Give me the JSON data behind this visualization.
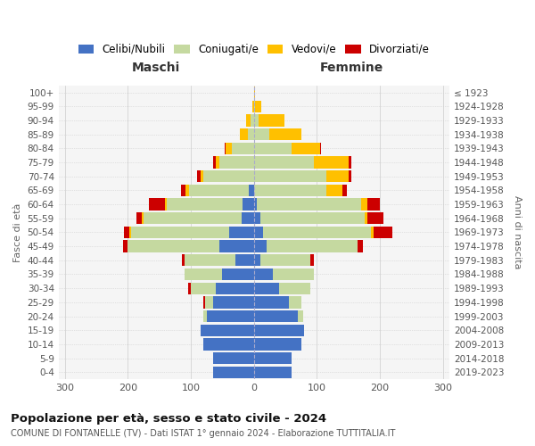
{
  "age_groups": [
    "0-4",
    "5-9",
    "10-14",
    "15-19",
    "20-24",
    "25-29",
    "30-34",
    "35-39",
    "40-44",
    "45-49",
    "50-54",
    "55-59",
    "60-64",
    "65-69",
    "70-74",
    "75-79",
    "80-84",
    "85-89",
    "90-94",
    "95-99",
    "100+"
  ],
  "birth_years": [
    "2019-2023",
    "2014-2018",
    "2009-2013",
    "2004-2008",
    "1999-2003",
    "1994-1998",
    "1989-1993",
    "1984-1988",
    "1979-1983",
    "1974-1978",
    "1969-1973",
    "1964-1968",
    "1959-1963",
    "1954-1958",
    "1949-1953",
    "1944-1948",
    "1939-1943",
    "1934-1938",
    "1929-1933",
    "1924-1928",
    "≤ 1923"
  ],
  "colors": {
    "celibe": "#4472c4",
    "coniugato": "#c5d9a0",
    "vedovo": "#ffc000",
    "divorziato": "#cc0000"
  },
  "maschi": {
    "celibe": [
      65,
      65,
      80,
      85,
      75,
      65,
      60,
      50,
      30,
      55,
      40,
      20,
      18,
      8,
      0,
      0,
      0,
      0,
      0,
      0,
      0
    ],
    "coniugato": [
      0,
      0,
      0,
      0,
      5,
      12,
      40,
      60,
      80,
      145,
      155,
      155,
      120,
      95,
      80,
      55,
      35,
      10,
      5,
      0,
      0
    ],
    "vedovo": [
      0,
      0,
      0,
      0,
      0,
      0,
      0,
      0,
      0,
      0,
      3,
      3,
      3,
      5,
      5,
      5,
      10,
      12,
      8,
      2,
      0
    ],
    "divorziato": [
      0,
      0,
      0,
      0,
      0,
      3,
      5,
      0,
      5,
      8,
      8,
      8,
      25,
      8,
      5,
      5,
      2,
      0,
      0,
      0,
      0
    ]
  },
  "femmine": {
    "nubile": [
      60,
      60,
      75,
      80,
      70,
      55,
      40,
      30,
      10,
      20,
      15,
      10,
      5,
      0,
      0,
      0,
      0,
      0,
      0,
      0,
      0
    ],
    "coniugata": [
      0,
      0,
      0,
      0,
      8,
      20,
      50,
      65,
      80,
      145,
      170,
      165,
      165,
      115,
      115,
      95,
      60,
      25,
      8,
      2,
      0
    ],
    "vedova": [
      0,
      0,
      0,
      0,
      0,
      0,
      0,
      0,
      0,
      0,
      5,
      5,
      10,
      25,
      35,
      55,
      45,
      50,
      40,
      10,
      2
    ],
    "divorziata": [
      0,
      0,
      0,
      0,
      0,
      0,
      0,
      0,
      5,
      8,
      30,
      25,
      20,
      8,
      5,
      5,
      2,
      0,
      0,
      0,
      0
    ]
  },
  "xlim": 310,
  "title": "Popolazione per età, sesso e stato civile - 2024",
  "subtitle": "COMUNE DI FONTANELLE (TV) - Dati ISTAT 1° gennaio 2024 - Elaborazione TUTTITALIA.IT",
  "ylabel_left": "Fasce di età",
  "ylabel_right": "Anni di nascita",
  "xlabel_left": "Maschi",
  "xlabel_right": "Femmine",
  "background_color": "#f5f5f5"
}
